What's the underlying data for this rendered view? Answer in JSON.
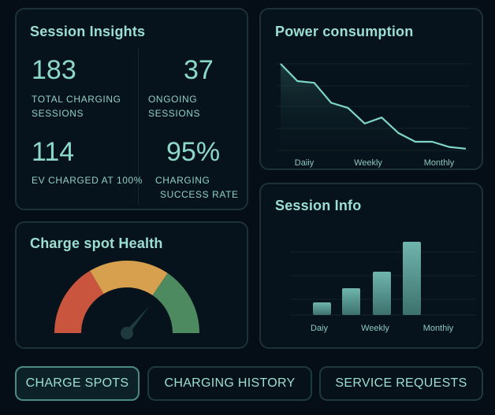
{
  "session_insights": {
    "title": "Session Insights",
    "stats": [
      {
        "value": "183",
        "label_lines": [
          "TOTAL CHARGING",
          "SESSIONS"
        ]
      },
      {
        "value": "37",
        "label_lines": [
          "ONGOING SESSIONS"
        ]
      },
      {
        "value": "114",
        "label_lines": [
          "EV CHARGED AT 100%"
        ]
      },
      {
        "value": "95%",
        "label_lines": [
          "CHARGING",
          "SUCCESS RATE"
        ]
      }
    ]
  },
  "power_consumption": {
    "title": "Power consumption",
    "chart_data": {
      "type": "area",
      "x_tick_labels": [
        "Daiiy",
        "Weekly",
        "Monthly"
      ],
      "values": [
        100,
        80,
        78,
        55,
        49,
        31,
        38,
        20,
        10,
        10,
        4,
        2
      ],
      "ylim": [
        0,
        100
      ],
      "grid": true,
      "line_color": "#7fd6c8"
    }
  },
  "charge_spot_health": {
    "title": "Charge spot Health",
    "gauge_value": 0.72,
    "segments": [
      {
        "color": "#c9553f",
        "from": 0,
        "to": 0.33
      },
      {
        "color": "#d6a04f",
        "from": 0.33,
        "to": 0.69
      },
      {
        "color": "#4d8a60",
        "from": 0.69,
        "to": 1
      }
    ]
  },
  "session_info": {
    "title": "Session Info",
    "chart_data": {
      "type": "bar",
      "x_tick_labels": [
        "Daiy",
        "Weekly",
        "Monthiy"
      ],
      "values": [
        16,
        34,
        55,
        93
      ],
      "ylim": [
        0,
        100
      ],
      "grid": true,
      "bar_color": "#5fa7a0"
    }
  },
  "buttons": [
    {
      "label": "CHARGE SPOTS",
      "active": true
    },
    {
      "label": "CHARGING HISTORY",
      "active": false
    },
    {
      "label": "SERVICE REQUESTS",
      "active": false
    }
  ]
}
